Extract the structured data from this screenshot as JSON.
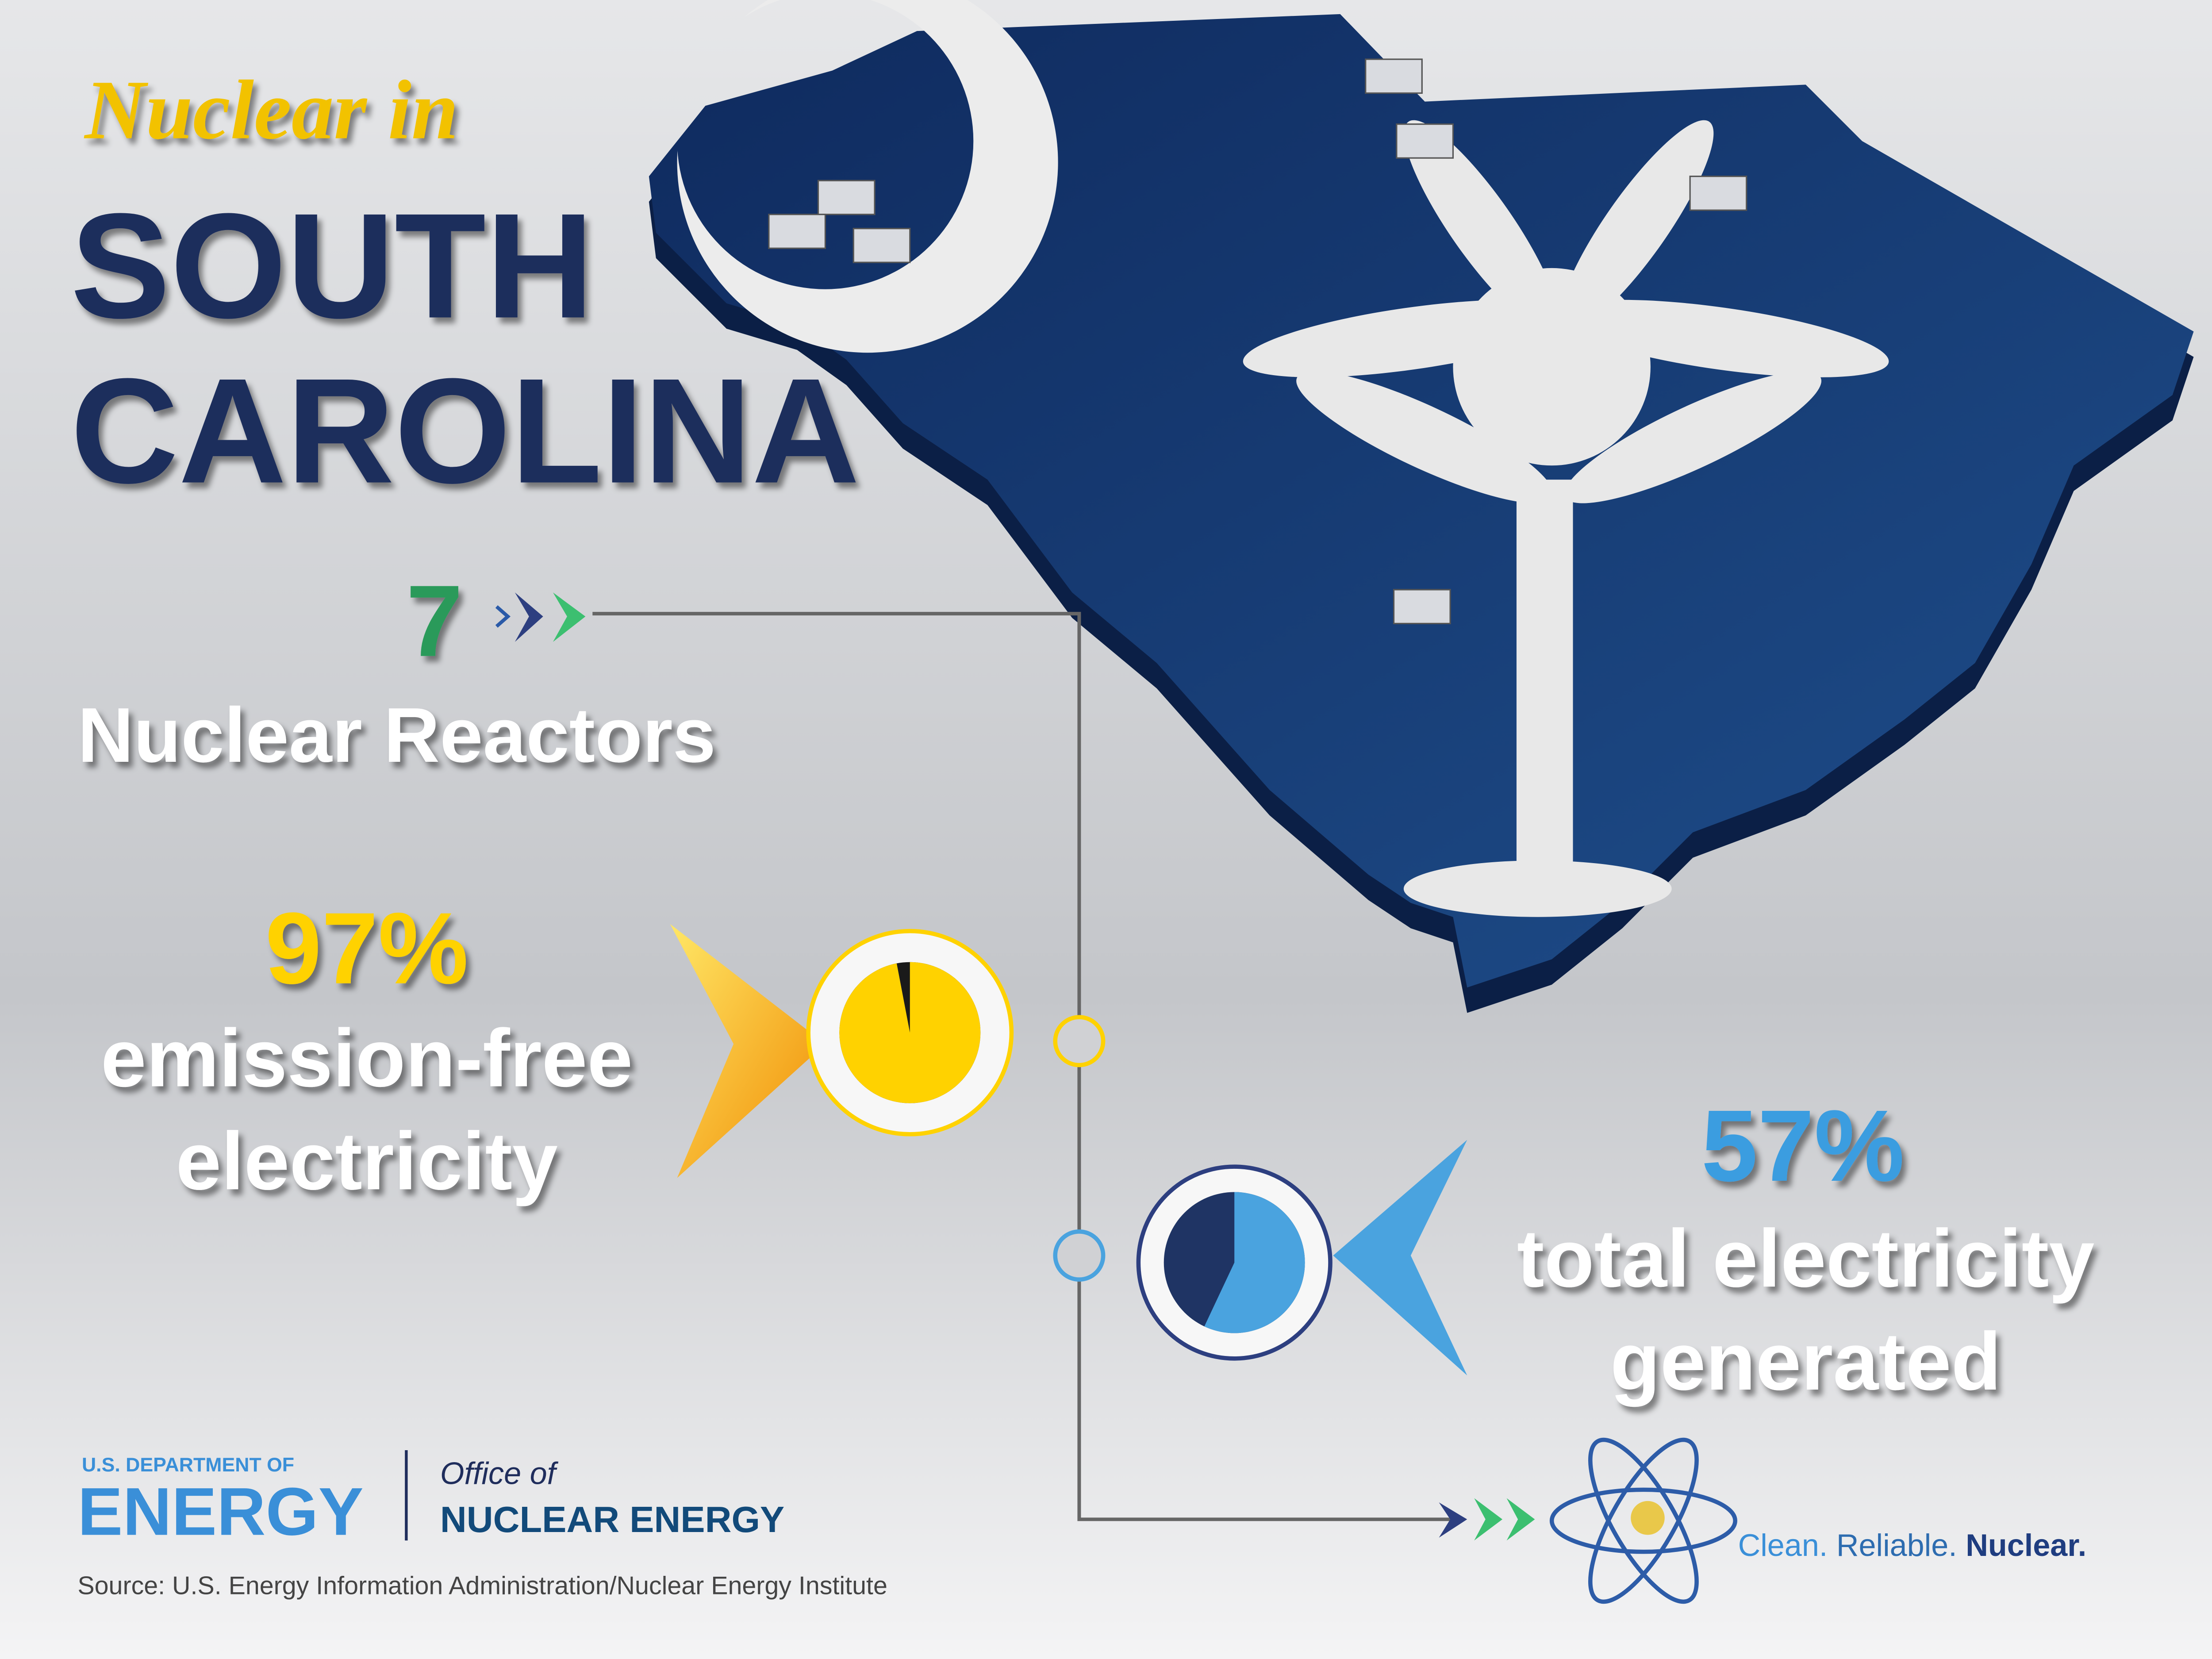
{
  "header": {
    "kicker": "Nuclear in",
    "title_line1": "SOUTH",
    "title_line2": "CAROLINA"
  },
  "stats": [
    {
      "value": 7,
      "lines": [
        "Nuclear Reactors"
      ]
    },
    {
      "value": 97,
      "label": "97%",
      "lines": [
        "emission-free",
        "electricity"
      ],
      "color": "#ffd200"
    },
    {
      "value": 57,
      "label": "57%",
      "lines": [
        "total electricity",
        "generated"
      ],
      "color": "#4aa3df"
    }
  ],
  "footer": {
    "agency_top": "U.S. DEPARTMENT OF",
    "agency": "ENERGY",
    "office_top": "Office of",
    "office": "NUCLEAR ENERGY",
    "source": "Source: U.S. Energy Information Administration/Nuclear Energy Institute",
    "tagline": [
      "Clean.",
      "Reliable.",
      "Nuclear."
    ]
  }
}
